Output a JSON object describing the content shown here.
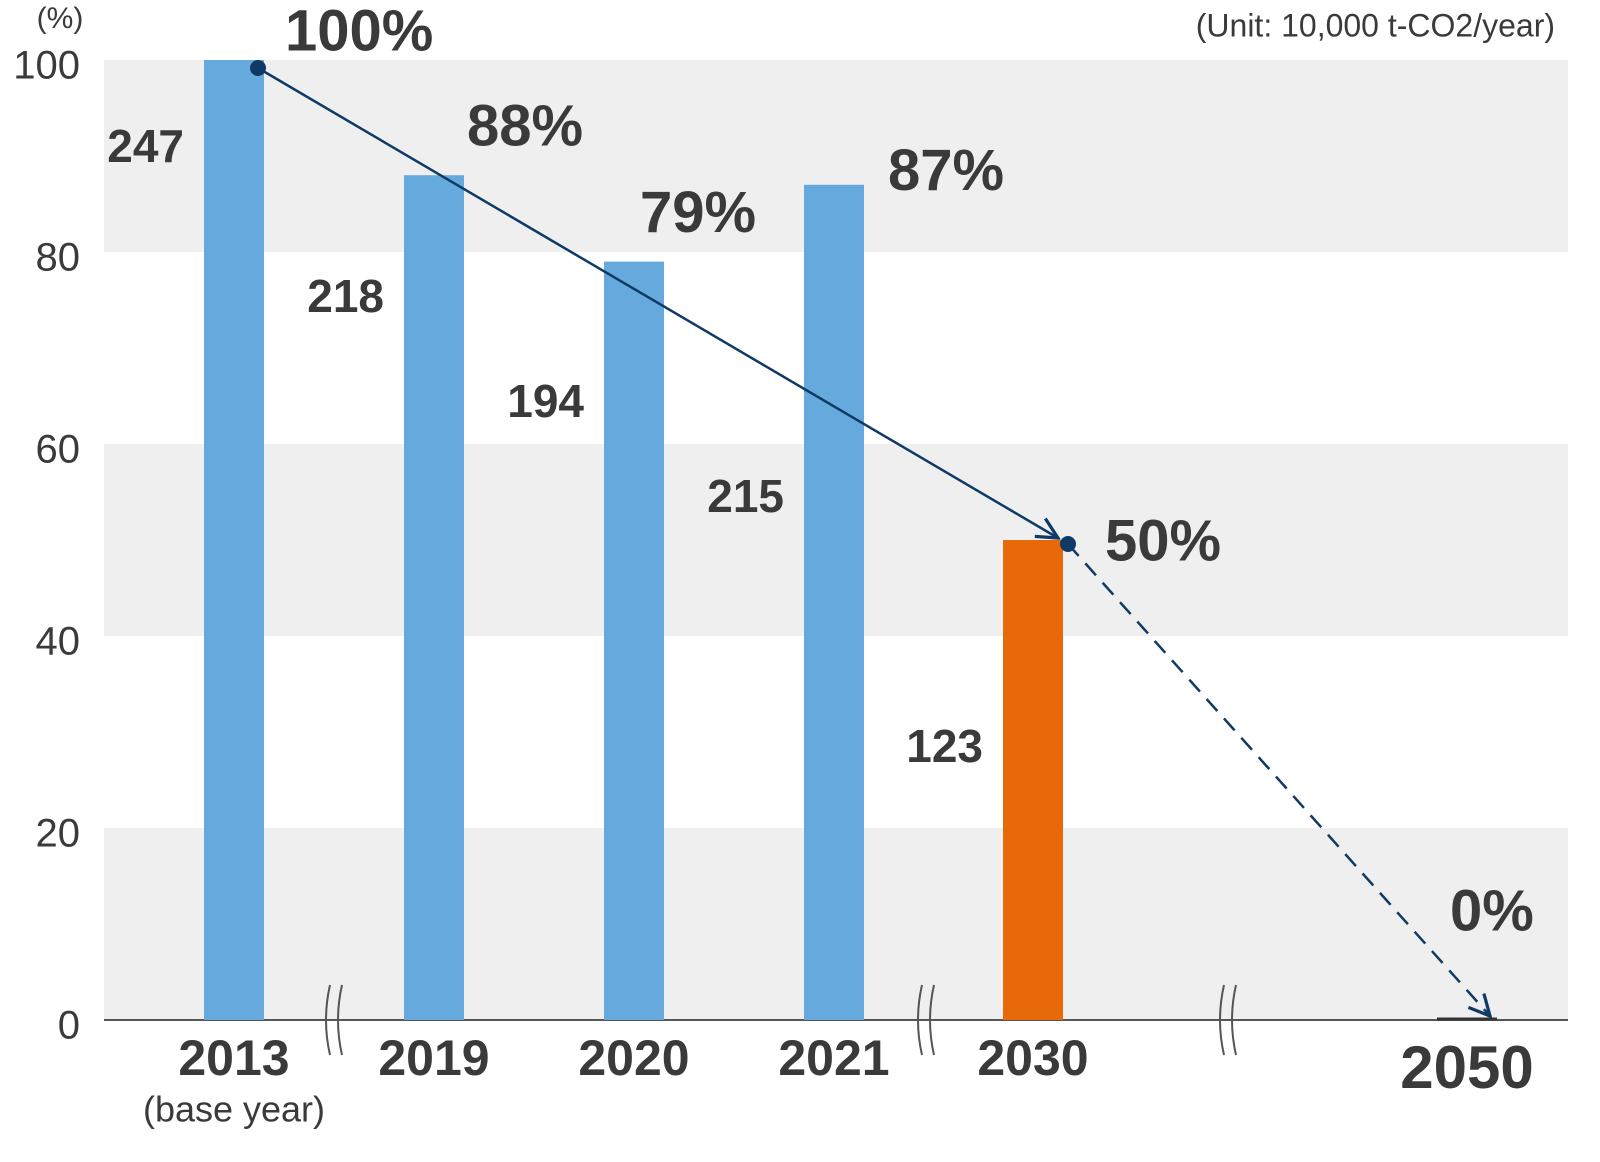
{
  "chart_data": {
    "type": "bar",
    "y_axis_label": "(%)",
    "unit_note": "(Unit: 10,000 t-CO2/year)",
    "categories": [
      "2013",
      "2019",
      "2020",
      "2021",
      "2030",
      "2050"
    ],
    "category_note": "(base year)",
    "values": [
      100,
      88,
      79,
      87,
      50,
      0
    ],
    "value_labels": [
      "100%",
      "88%",
      "79%",
      "87%",
      "50%",
      "0%"
    ],
    "amounts": [
      247,
      218,
      194,
      215,
      123,
      null
    ],
    "colors": [
      "#66a9dc",
      "#66a9dc",
      "#66a9dc",
      "#66a9dc",
      "#e8690a",
      "#333333"
    ],
    "trend_color": "#0f3a66",
    "ylim": [
      0,
      100
    ],
    "yticks": [
      0,
      20,
      40,
      60,
      80,
      100
    ],
    "grid_bands": true
  }
}
